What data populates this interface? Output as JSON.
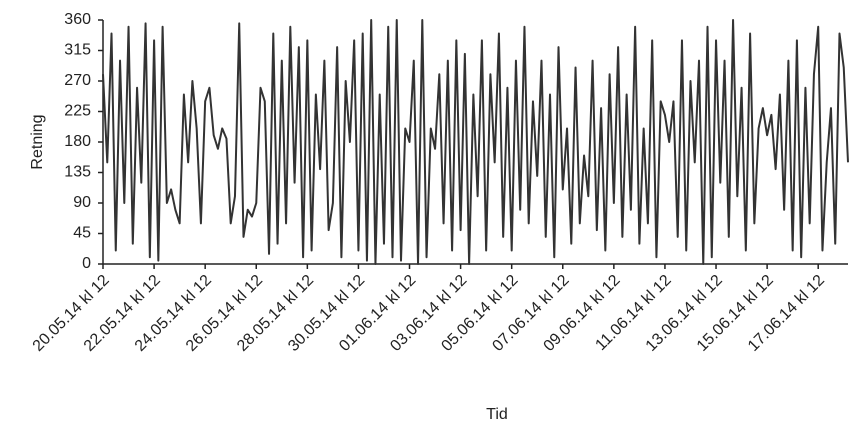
{
  "chart_data": {
    "type": "line",
    "y_label": "Retning",
    "x_label": "Tid",
    "color": "#333333",
    "categories": [
      "20.05.14 kl 12",
      null,
      null,
      null,
      null,
      null,
      null,
      null,
      null,
      null,
      null,
      null,
      "22.05.14 kl 12",
      null,
      null,
      null,
      null,
      null,
      null,
      null,
      null,
      null,
      null,
      null,
      "24.05.14 kl 12",
      null,
      null,
      null,
      null,
      null,
      null,
      null,
      null,
      null,
      null,
      null,
      "26.05.14 kl 12",
      null,
      null,
      null,
      null,
      null,
      null,
      null,
      null,
      null,
      null,
      null,
      "28.05.14 kl 12",
      null,
      null,
      null,
      null,
      null,
      null,
      null,
      null,
      null,
      null,
      null,
      "30.05.14 kl 12",
      null,
      null,
      null,
      null,
      null,
      null,
      null,
      null,
      null,
      null,
      null,
      "01.06.14 kl 12",
      null,
      null,
      null,
      null,
      null,
      null,
      null,
      null,
      null,
      null,
      null,
      "03.06.14 kl 12",
      null,
      null,
      null,
      null,
      null,
      null,
      null,
      null,
      null,
      null,
      null,
      "05.06.14 kl 12",
      null,
      null,
      null,
      null,
      null,
      null,
      null,
      null,
      null,
      null,
      null,
      "07.06.14 kl 12",
      null,
      null,
      null,
      null,
      null,
      null,
      null,
      null,
      null,
      null,
      null,
      "09.06.14 kl 12",
      null,
      null,
      null,
      null,
      null,
      null,
      null,
      null,
      null,
      null,
      null,
      "11.06.14 kl 12",
      null,
      null,
      null,
      null,
      null,
      null,
      null,
      null,
      null,
      null,
      null,
      "13.06.14 kl 12",
      null,
      null,
      null,
      null,
      null,
      null,
      null,
      null,
      null,
      null,
      null,
      "15.06.14 kl 12",
      null,
      null,
      null,
      null,
      null,
      null,
      null,
      null,
      null,
      null,
      null,
      "17.06.14 kl 12",
      null,
      null,
      null,
      null,
      null,
      null,
      null
    ],
    "values": [
      280,
      150,
      340,
      20,
      300,
      90,
      350,
      30,
      260,
      120,
      355,
      10,
      330,
      5,
      350,
      90,
      110,
      80,
      60,
      250,
      150,
      270,
      200,
      60,
      240,
      260,
      190,
      170,
      200,
      185,
      60,
      100,
      355,
      40,
      80,
      70,
      90,
      260,
      240,
      15,
      340,
      30,
      300,
      60,
      350,
      120,
      320,
      10,
      330,
      20,
      250,
      140,
      300,
      50,
      90,
      320,
      10,
      270,
      180,
      330,
      20,
      340,
      5,
      360,
      0,
      250,
      30,
      350,
      10,
      360,
      5,
      200,
      180,
      300,
      0,
      360,
      10,
      200,
      170,
      280,
      60,
      300,
      20,
      330,
      50,
      310,
      0,
      250,
      100,
      330,
      20,
      280,
      150,
      340,
      40,
      260,
      20,
      300,
      80,
      350,
      60,
      240,
      130,
      300,
      40,
      250,
      10,
      320,
      110,
      200,
      30,
      290,
      60,
      160,
      100,
      300,
      50,
      230,
      20,
      280,
      90,
      320,
      40,
      250,
      80,
      350,
      30,
      200,
      60,
      330,
      10,
      240,
      220,
      180,
      240,
      40,
      330,
      20,
      270,
      150,
      300,
      0,
      350,
      10,
      330,
      120,
      300,
      40,
      360,
      100,
      260,
      20,
      340,
      60,
      200,
      230,
      190,
      220,
      140,
      250,
      80,
      300,
      20,
      330,
      10,
      260,
      60,
      280,
      350,
      20,
      150,
      230,
      30,
      340,
      290,
      150
    ],
    "ylim": [
      0,
      360
    ],
    "yticks": [
      0,
      45,
      90,
      135,
      180,
      225,
      270,
      315,
      360
    ]
  }
}
